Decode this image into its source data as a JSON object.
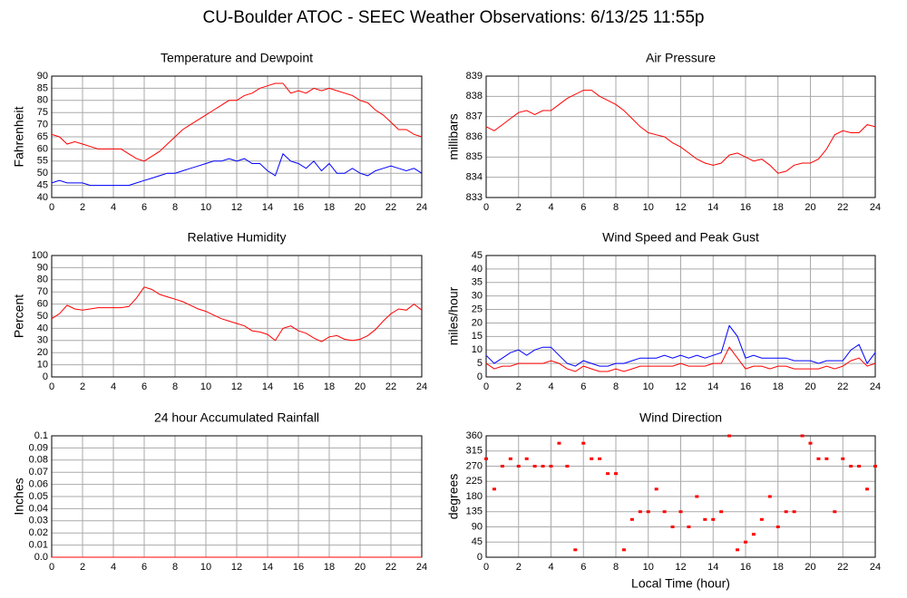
{
  "page_title": "CU-Boulder ATOC - SEEC Weather Observations: 6/13/25 11:55p",
  "chart_data": [
    {
      "type": "line",
      "title": "Temperature and Dewpoint",
      "y_label": "Fahrenheit",
      "x": [
        0,
        0.5,
        1,
        1.5,
        2,
        2.5,
        3,
        3.5,
        4,
        4.5,
        5,
        5.5,
        6,
        6.5,
        7,
        7.5,
        8,
        8.5,
        9,
        9.5,
        10,
        10.5,
        11,
        11.5,
        12,
        12.5,
        13,
        13.5,
        14,
        14.5,
        15,
        15.5,
        16,
        16.5,
        17,
        17.5,
        18,
        18.5,
        19,
        19.5,
        20,
        20.5,
        21,
        21.5,
        22,
        22.5,
        23,
        23.5,
        24
      ],
      "series": [
        {
          "color": "#ff0000",
          "values": [
            66,
            65,
            62,
            63,
            62,
            61,
            60,
            60,
            60,
            60,
            58,
            56,
            55,
            57,
            59,
            62,
            65,
            68,
            70,
            72,
            74,
            76,
            78,
            80,
            80,
            82,
            83,
            85,
            86,
            87,
            87,
            83,
            84,
            83,
            85,
            84,
            85,
            84,
            83,
            82,
            80,
            79,
            76,
            74,
            71,
            68,
            68,
            66,
            65
          ]
        },
        {
          "color": "#0000ff",
          "values": [
            46,
            47,
            46,
            46,
            46,
            45,
            45,
            45,
            45,
            45,
            45,
            46,
            47,
            48,
            49,
            50,
            50,
            51,
            52,
            53,
            54,
            55,
            55,
            56,
            55,
            56,
            54,
            54,
            51,
            49,
            58,
            55,
            54,
            52,
            55,
            51,
            54,
            50,
            50,
            52,
            50,
            49,
            51,
            52,
            53,
            52,
            51,
            52,
            50
          ]
        }
      ],
      "xlim": [
        0,
        24
      ],
      "xticks": [
        0,
        2,
        4,
        6,
        8,
        10,
        12,
        14,
        16,
        18,
        20,
        22,
        24
      ],
      "ylim": [
        40,
        90
      ],
      "yticks": [
        40,
        45,
        50,
        55,
        60,
        65,
        70,
        75,
        80,
        85,
        90
      ],
      "grid": true
    },
    {
      "type": "line",
      "title": "Air Pressure",
      "y_label": "millibars",
      "x": [
        0,
        0.5,
        1,
        1.5,
        2,
        2.5,
        3,
        3.5,
        4,
        4.5,
        5,
        5.5,
        6,
        6.5,
        7,
        7.5,
        8,
        8.5,
        9,
        9.5,
        10,
        10.5,
        11,
        11.5,
        12,
        12.5,
        13,
        13.5,
        14,
        14.5,
        15,
        15.5,
        16,
        16.5,
        17,
        17.5,
        18,
        18.5,
        19,
        19.5,
        20,
        20.5,
        21,
        21.5,
        22,
        22.5,
        23,
        23.5,
        24
      ],
      "series": [
        {
          "color": "#ff0000",
          "values": [
            836.5,
            836.3,
            836.6,
            836.9,
            837.2,
            837.3,
            837.1,
            837.3,
            837.3,
            837.6,
            837.9,
            838.1,
            838.3,
            838.3,
            838.0,
            837.8,
            837.6,
            837.3,
            836.9,
            836.5,
            836.2,
            836.1,
            836.0,
            835.7,
            835.5,
            835.2,
            834.9,
            834.7,
            834.6,
            834.7,
            835.1,
            835.2,
            835.0,
            834.8,
            834.9,
            834.6,
            834.2,
            834.3,
            834.6,
            834.7,
            834.7,
            834.9,
            835.4,
            836.1,
            836.3,
            836.2,
            836.2,
            836.6,
            836.5
          ]
        }
      ],
      "xlim": [
        0,
        24
      ],
      "xticks": [
        0,
        2,
        4,
        6,
        8,
        10,
        12,
        14,
        16,
        18,
        20,
        22,
        24
      ],
      "ylim": [
        833,
        839
      ],
      "yticks": [
        833,
        834,
        835,
        836,
        837,
        838,
        839
      ],
      "grid": true
    },
    {
      "type": "line",
      "title": "Relative Humidity",
      "y_label": "Percent",
      "x": [
        0,
        0.5,
        1,
        1.5,
        2,
        2.5,
        3,
        3.5,
        4,
        4.5,
        5,
        5.5,
        6,
        6.5,
        7,
        7.5,
        8,
        8.5,
        9,
        9.5,
        10,
        10.5,
        11,
        11.5,
        12,
        12.5,
        13,
        13.5,
        14,
        14.5,
        15,
        15.5,
        16,
        16.5,
        17,
        17.5,
        18,
        18.5,
        19,
        19.5,
        20,
        20.5,
        21,
        21.5,
        22,
        22.5,
        23,
        23.5,
        24
      ],
      "series": [
        {
          "color": "#ff0000",
          "values": [
            48,
            52,
            59,
            56,
            55,
            56,
            57,
            57,
            57,
            57,
            58,
            65,
            74,
            72,
            68,
            66,
            64,
            62,
            59,
            56,
            54,
            51,
            48,
            46,
            44,
            42,
            38,
            37,
            35,
            30,
            40,
            42,
            38,
            36,
            32,
            29,
            33,
            34,
            31,
            30,
            31,
            34,
            39,
            46,
            52,
            56,
            55,
            60,
            55
          ]
        }
      ],
      "xlim": [
        0,
        24
      ],
      "xticks": [
        0,
        2,
        4,
        6,
        8,
        10,
        12,
        14,
        16,
        18,
        20,
        22,
        24
      ],
      "ylim": [
        0,
        100
      ],
      "yticks": [
        0,
        10,
        20,
        30,
        40,
        50,
        60,
        70,
        80,
        90,
        100
      ],
      "grid": true
    },
    {
      "type": "line",
      "title": "Wind Speed and Peak Gust",
      "y_label": "miles/hour",
      "x": [
        0,
        0.5,
        1,
        1.5,
        2,
        2.5,
        3,
        3.5,
        4,
        4.5,
        5,
        5.5,
        6,
        6.5,
        7,
        7.5,
        8,
        8.5,
        9,
        9.5,
        10,
        10.5,
        11,
        11.5,
        12,
        12.5,
        13,
        13.5,
        14,
        14.5,
        15,
        15.5,
        16,
        16.5,
        17,
        17.5,
        18,
        18.5,
        19,
        19.5,
        20,
        20.5,
        21,
        21.5,
        22,
        22.5,
        23,
        23.5,
        24
      ],
      "series": [
        {
          "color": "#0000ff",
          "values": [
            8,
            5,
            7,
            9,
            10,
            8,
            10,
            11,
            11,
            8,
            5,
            4,
            6,
            5,
            4,
            4,
            5,
            5,
            6,
            7,
            7,
            7,
            8,
            7,
            8,
            7,
            8,
            7,
            8,
            9,
            19,
            15,
            7,
            8,
            7,
            7,
            7,
            7,
            6,
            6,
            6,
            5,
            6,
            6,
            6,
            10,
            12,
            5,
            9
          ]
        },
        {
          "color": "#ff0000",
          "values": [
            5,
            3,
            4,
            4,
            5,
            5,
            5,
            5,
            6,
            5,
            3,
            2,
            4,
            3,
            2,
            2,
            3,
            2,
            3,
            4,
            4,
            4,
            4,
            4,
            5,
            4,
            4,
            4,
            5,
            5,
            11,
            7,
            3,
            4,
            4,
            3,
            4,
            4,
            3,
            3,
            3,
            3,
            4,
            3,
            4,
            6,
            7,
            4,
            5
          ]
        }
      ],
      "xlim": [
        0,
        24
      ],
      "xticks": [
        0,
        2,
        4,
        6,
        8,
        10,
        12,
        14,
        16,
        18,
        20,
        22,
        24
      ],
      "ylim": [
        0,
        45
      ],
      "yticks": [
        0,
        5,
        10,
        15,
        20,
        25,
        30,
        35,
        40,
        45
      ],
      "grid": true
    },
    {
      "type": "line",
      "title": "24 hour Accumulated Rainfall",
      "y_label": "Inches",
      "x": [
        0,
        24
      ],
      "series": [
        {
          "color": "#ff0000",
          "values": [
            0,
            0
          ]
        }
      ],
      "xlim": [
        0,
        24
      ],
      "xticks": [
        0,
        2,
        4,
        6,
        8,
        10,
        12,
        14,
        16,
        18,
        20,
        22,
        24
      ],
      "ylim": [
        0,
        0.1
      ],
      "yticks": [
        {
          "value": 0,
          "label": "0.0"
        },
        0.01,
        0.02,
        0.03,
        0.04,
        0.05,
        0.06,
        0.07,
        0.08,
        0.09,
        0.1
      ],
      "grid": true
    },
    {
      "type": "scatter",
      "title": "Wind Direction",
      "y_label": "degrees",
      "x_label": "Local Time (hour)",
      "x": [
        0,
        0.5,
        1,
        1.5,
        2,
        2.5,
        3,
        3.5,
        4,
        4.5,
        5,
        5.5,
        6,
        6.5,
        7,
        7.5,
        8,
        8.5,
        9,
        9.5,
        10,
        10.5,
        11,
        11.5,
        12,
        12.5,
        13,
        13.5,
        14,
        14.5,
        15,
        15.5,
        16,
        16.5,
        17,
        17.5,
        18,
        18.5,
        19,
        19.5,
        20,
        20.5,
        21,
        21.5,
        22,
        22.5,
        23,
        23.5,
        24
      ],
      "series": [
        {
          "color": "#ff0000",
          "values": [
            292,
            202,
            270,
            292,
            270,
            292,
            270,
            270,
            270,
            338,
            270,
            22,
            338,
            292,
            292,
            248,
            248,
            22,
            112,
            135,
            135,
            202,
            135,
            90,
            135,
            90,
            180,
            112,
            112,
            135,
            360,
            22,
            45,
            68,
            112,
            180,
            90,
            135,
            135,
            360,
            338,
            292,
            292,
            135,
            292,
            270,
            270,
            202,
            270
          ]
        }
      ],
      "xlim": [
        0,
        24
      ],
      "xticks": [
        0,
        2,
        4,
        6,
        8,
        10,
        12,
        14,
        16,
        18,
        20,
        22,
        24
      ],
      "ylim": [
        0,
        360
      ],
      "yticks": [
        0,
        45,
        90,
        135,
        180,
        225,
        270,
        315,
        360
      ],
      "grid": true
    }
  ]
}
